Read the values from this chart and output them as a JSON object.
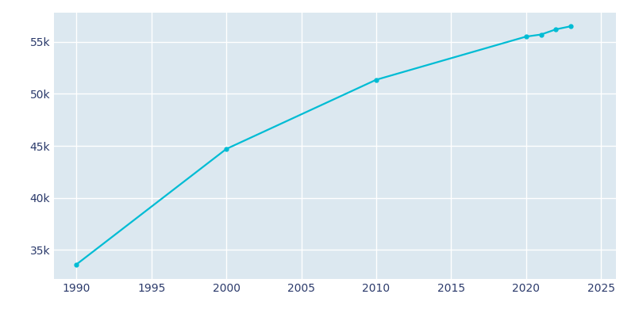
{
  "years": [
    1990,
    2000,
    2010,
    2020,
    2021,
    2022,
    2023
  ],
  "population": [
    33600,
    44700,
    51350,
    55500,
    55700,
    56200,
    56500
  ],
  "line_color": "#00BCD4",
  "marker_style": "o",
  "marker_size": 3.5,
  "bg_color": "#FFFFFF",
  "plot_bg_color": "#DCE8F0",
  "grid_color": "#FFFFFF",
  "tick_color": "#2B3A6B",
  "xlim": [
    1988.5,
    2026
  ],
  "ylim": [
    32200,
    57800
  ],
  "xticks": [
    1990,
    1995,
    2000,
    2005,
    2010,
    2015,
    2020,
    2025
  ],
  "yticks": [
    35000,
    40000,
    45000,
    50000,
    55000
  ],
  "ytick_labels": [
    "35k",
    "40k",
    "45k",
    "50k",
    "55k"
  ]
}
